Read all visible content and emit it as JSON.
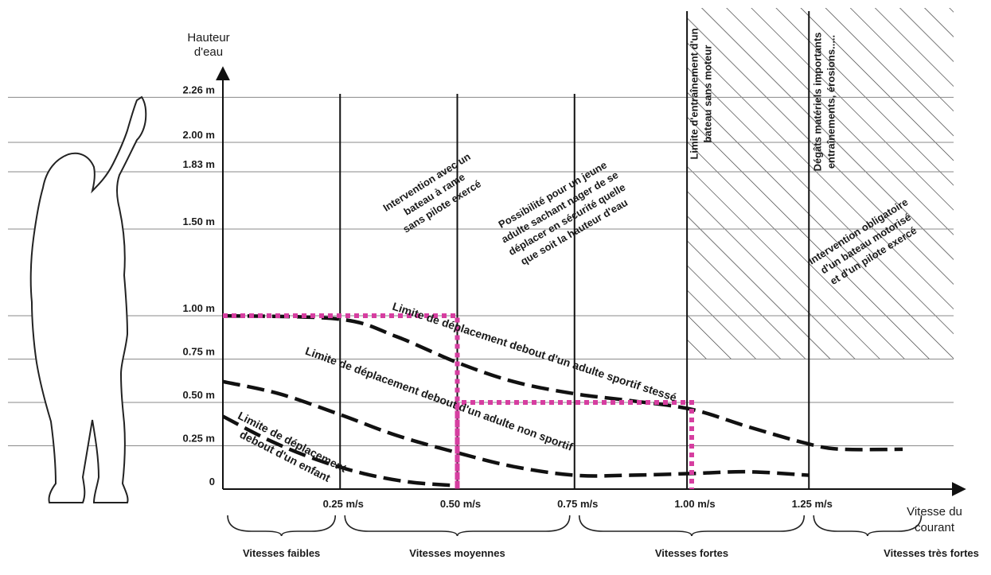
{
  "chart_data": {
    "type": "line",
    "title": "",
    "xlabel": "Vitesse du courant",
    "ylabel": "Hauteur d'eau",
    "xlim": [
      0,
      1.5
    ],
    "ylim": [
      0,
      2.26
    ],
    "x_ticks": [
      {
        "value": 0.25,
        "label": "0.25 m/s"
      },
      {
        "value": 0.5,
        "label": "0.50 m/s"
      },
      {
        "value": 0.75,
        "label": "0.75 m/s"
      },
      {
        "value": 1.0,
        "label": "1.00 m/s"
      },
      {
        "value": 1.25,
        "label": "1.25 m/s"
      }
    ],
    "y_ticks": [
      {
        "value": 0,
        "label": "0"
      },
      {
        "value": 0.25,
        "label": "0.25 m"
      },
      {
        "value": 0.5,
        "label": "0.50 m"
      },
      {
        "value": 0.75,
        "label": "0.75 m"
      },
      {
        "value": 1.0,
        "label": "1.00 m"
      },
      {
        "value": 1.5,
        "label": "1.50 m"
      },
      {
        "value": 1.83,
        "label": "1.83 m"
      },
      {
        "value": 2.0,
        "label": "2.00 m"
      },
      {
        "value": 2.26,
        "label": "2.26 m"
      }
    ],
    "grid": true,
    "series": [
      {
        "name": "Limite de déplacement debout d'un adulte sportif stessé",
        "style": "dashed",
        "color": "#111111",
        "x": [
          0.0,
          0.25,
          0.37,
          0.5,
          0.62,
          0.75,
          0.87,
          1.0,
          1.12,
          1.25,
          1.32,
          1.45
        ],
        "y": [
          1.0,
          0.98,
          0.88,
          0.73,
          0.62,
          0.55,
          0.51,
          0.46,
          0.36,
          0.26,
          0.23,
          0.23
        ]
      },
      {
        "name": "Limite de déplacement debout d'un adulte non sportif",
        "style": "dashed",
        "color": "#111111",
        "x": [
          0.0,
          0.12,
          0.25,
          0.37,
          0.5,
          0.62,
          0.75,
          0.87,
          1.0,
          1.12,
          1.25
        ],
        "y": [
          0.62,
          0.55,
          0.43,
          0.31,
          0.21,
          0.13,
          0.08,
          0.08,
          0.09,
          0.1,
          0.08
        ]
      },
      {
        "name": "Limite de déplacement debout d'un enfant",
        "style": "dashed",
        "color": "#111111",
        "x": [
          0.0,
          0.1,
          0.2,
          0.3,
          0.4,
          0.5
        ],
        "y": [
          0.42,
          0.28,
          0.17,
          0.09,
          0.04,
          0.02
        ]
      },
      {
        "name": "",
        "style": "dotted",
        "color": "#d63ea0",
        "x": [
          0.0,
          0.5,
          0.5,
          0.5,
          1.0,
          1.0
        ],
        "y": [
          1.0,
          1.0,
          0.0,
          0.5,
          0.5,
          0.0
        ]
      }
    ],
    "vertical_lines": [
      {
        "x": 0.25,
        "y_top": 2.26
      },
      {
        "x": 0.5,
        "y_top": 2.26
      },
      {
        "x": 0.75,
        "y_top": 2.26
      },
      {
        "x": 0.99,
        "y_top": 2.7
      },
      {
        "x": 1.25,
        "y_top": 2.7
      }
    ],
    "hatched_region": {
      "x0": 0.99,
      "x1": 1.5,
      "y0": 0.75,
      "y1": 2.7
    },
    "annotations": [
      {
        "id": "a1",
        "lines": [
          "Intervention avec un",
          "bateau à rame",
          "sans pilote exercé"
        ]
      },
      {
        "id": "a2",
        "lines": [
          "Possibilité pour un jeune",
          "adulte sachant nager de se",
          "déplacer en sécurité quelle",
          "que soit la hauteur d'eau"
        ]
      },
      {
        "id": "a3",
        "lines": [
          "Limite d'entraînement d'un",
          "bateau sans moteur"
        ]
      },
      {
        "id": "a4",
        "lines": [
          "Dégâts matériels importants",
          "entraînements, érosions....."
        ]
      },
      {
        "id": "a5",
        "lines": [
          "Intervention obligatoire",
          "d'un bateau motorisé",
          "et d'un pilote exercé"
        ]
      }
    ],
    "curve_labels": [
      {
        "id": "c1",
        "text": "Limite de déplacement debout  d'un adulte sportif stessé"
      },
      {
        "id": "c2",
        "text": "Limite de déplacement debout d'un adulte non sportif"
      },
      {
        "id": "c3",
        "lines": [
          "Limite de déplacement",
          "debout d'un enfant"
        ]
      }
    ],
    "zones": [
      {
        "label": "Vitesses faibles",
        "x0": 0.0,
        "x1": 0.25
      },
      {
        "label": "Vitesses moyennes",
        "x0": 0.25,
        "x1": 0.75
      },
      {
        "label": "Vitesses fortes",
        "x0": 0.75,
        "x1": 1.25
      },
      {
        "label": "Vitesses très fortes",
        "x0": 1.25,
        "x1": 1.5
      }
    ],
    "ylabel_lines": [
      "Hauteur",
      "d'eau"
    ],
    "xlabel_lines": [
      "Vitesse du",
      "courant"
    ]
  }
}
